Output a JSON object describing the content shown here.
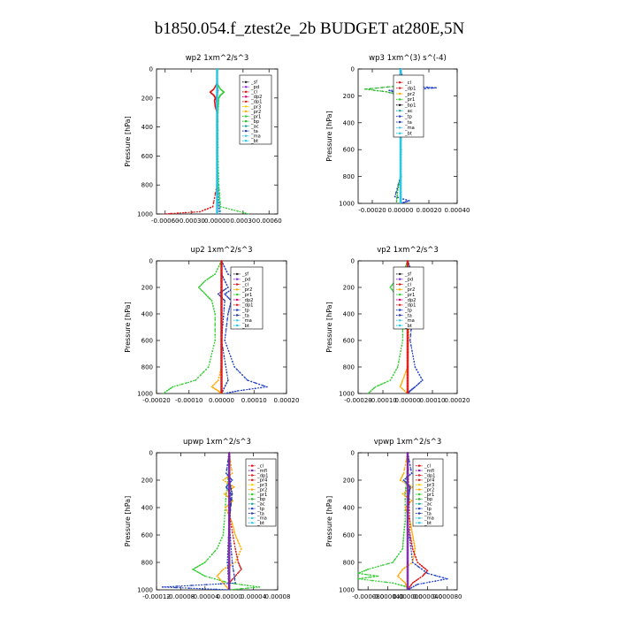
{
  "figure_title": "b1850.054.f_ztest2e_2b  BUDGET at280E,5N",
  "colors": {
    "sf": "#222222",
    "pd": "#8a2be2",
    "cl": "#dd1111",
    "dp2": "#e6007e",
    "dp1": "#e22222",
    "pr3": "#ffcc00",
    "pr2": "#ffaa00",
    "pr1": "#2ecc2e",
    "bp": "#2ab52a",
    "ac": "#1ca39a",
    "tp": "#2040c8",
    "ta": "#1e3aa0",
    "ma": "#3fc4e8",
    "bt": "#20c8e8",
    "mfl": "#7a1fa2",
    "pr4": "#cc2222"
  },
  "chart_data": [
    {
      "type": "line",
      "title": "wp2  1xm^2/s^3",
      "ylabel": "Pressure [hPa]",
      "xlim": [
        -0.0007,
        0.0007
      ],
      "ylim": [
        1000,
        0
      ],
      "xticks": [
        -0.0006,
        -0.0003,
        0,
        0.0003,
        0.0006
      ],
      "xtick_labels": [
        "-0.00060",
        "-0.00030",
        "0.00000",
        "0.00030",
        "0.00060"
      ],
      "yticks": [
        0,
        200,
        400,
        600,
        800,
        1000
      ],
      "yticklabels": [
        "0",
        "200",
        "400",
        "600",
        "800",
        "1000"
      ],
      "legend": [
        "_sf",
        "_pd",
        "_cl",
        "_dp2",
        "_dp1",
        "_pr3",
        "_pr2",
        "_pr1",
        "_bp",
        "_ac",
        "_ta",
        "_ma",
        "_bt"
      ],
      "series": [
        {
          "name": "sf",
          "color": "sf",
          "p": [
            0,
            1000
          ],
          "v": [
            0,
            0
          ]
        },
        {
          "name": "pd",
          "color": "pd",
          "p": [
            100,
            150,
            200,
            250,
            800,
            900,
            1000
          ],
          "v": [
            0,
            1e-05,
            -1e-05,
            0,
            0,
            1e-05,
            3e-05
          ]
        },
        {
          "name": "cl",
          "color": "cl",
          "p": [
            100,
            140,
            160,
            180,
            200,
            220,
            260,
            300,
            500,
            800,
            950,
            985,
            1000
          ],
          "v": [
            0,
            -4e-05,
            -8e-05,
            -4e-05,
            -2e-05,
            -3e-05,
            -2e-05,
            0,
            0,
            0,
            -5e-05,
            -0.0002,
            -0.00062
          ]
        },
        {
          "name": "pr1",
          "color": "pr1",
          "p": [
            100,
            140,
            160,
            180,
            200,
            300,
            600,
            800,
            950,
            1000
          ],
          "v": [
            0,
            4e-05,
            8e-05,
            4e-05,
            2e-05,
            1e-05,
            1e-05,
            2e-05,
            4e-05,
            0.00037
          ]
        },
        {
          "name": "ac",
          "color": "ac",
          "p": [
            0,
            600,
            800,
            900,
            1000
          ],
          "v": [
            0,
            0,
            1e-05,
            2e-05,
            4e-05
          ]
        },
        {
          "name": "bt",
          "color": "bt",
          "p": [
            0,
            1000
          ],
          "v": [
            5e-06,
            5e-06
          ]
        }
      ]
    },
    {
      "type": "line",
      "title": "wp3  1xm^(3) s^(-4)",
      "ylabel": "Pressure [hPa]",
      "xlim": [
        -0.0003,
        0.0004
      ],
      "ylim": [
        1000,
        0
      ],
      "xticks": [
        -0.0002,
        0,
        0.0002,
        0.0004
      ],
      "xtick_labels": [
        "-0.00020",
        "0.00000",
        "0.00020",
        "0.00040"
      ],
      "yticks": [
        0,
        200,
        400,
        600,
        800,
        1000
      ],
      "yticklabels": [
        "0",
        "200",
        "400",
        "600",
        "800",
        "1000"
      ],
      "legend": [
        "_cl",
        "_dp1",
        "_pr2",
        "_pr1",
        "_bp1",
        "_ac",
        "_tp",
        "_ta",
        "_ma",
        "_bt"
      ],
      "series": [
        {
          "name": "cl",
          "color": "cl",
          "p": [
            0,
            100,
            140,
            160,
            200,
            300,
            400,
            600,
            800,
            1000
          ],
          "v": [
            0,
            -1e-05,
            -4e-05,
            2e-05,
            -1e-05,
            1e-05,
            0,
            0,
            0,
            0
          ]
        },
        {
          "name": "tp",
          "color": "tp",
          "p": [
            0,
            100,
            130,
            140,
            150,
            160,
            200,
            260,
            300,
            400,
            600,
            800,
            950,
            980,
            1000
          ],
          "v": [
            0,
            2e-05,
            0.0001,
            0.00025,
            0.00012,
            -8e-05,
            2e-05,
            -3e-05,
            1e-05,
            0,
            0,
            0,
            -4e-05,
            6e-05,
            0
          ]
        },
        {
          "name": "bp",
          "color": "bp",
          "p": [
            100,
            130,
            150,
            170,
            200,
            250,
            300,
            500,
            800,
            900,
            1000
          ],
          "v": [
            0,
            -5e-05,
            -0.00025,
            -0.0001,
            2e-05,
            -2e-05,
            1e-05,
            0,
            0,
            -2e-05,
            -3e-05
          ]
        },
        {
          "name": "pr2",
          "color": "pr2",
          "p": [
            100,
            150,
            180,
            220,
            300,
            400,
            600,
            800,
            1000
          ],
          "v": [
            0,
            4e-05,
            -4e-05,
            3e-05,
            -2e-05,
            1e-05,
            0,
            0,
            0
          ]
        },
        {
          "name": "ma",
          "color": "ma",
          "p": [
            100,
            140,
            160,
            200,
            300,
            1000
          ],
          "v": [
            0,
            8e-05,
            -5e-05,
            2e-05,
            0,
            0
          ]
        },
        {
          "name": "bt",
          "color": "bt",
          "p": [
            0,
            1000
          ],
          "v": [
            5e-06,
            5e-06
          ]
        }
      ]
    },
    {
      "type": "line",
      "title": "up2  1xm^2/s^3",
      "ylabel": "Pressure [hPa]",
      "xlim": [
        -0.0002,
        0.0002
      ],
      "ylim": [
        1000,
        0
      ],
      "xticks": [
        -0.0002,
        -0.0001,
        0,
        0.0001,
        0.0002
      ],
      "xtick_labels": [
        "-0.00020",
        "-0.00010",
        "0.00000",
        "0.00010",
        "0.00020"
      ],
      "yticks": [
        0,
        200,
        400,
        600,
        800,
        1000
      ],
      "yticklabels": [
        "0",
        "200",
        "400",
        "600",
        "800",
        "1000"
      ],
      "legend": [
        "_sf",
        "_pd",
        "_cl",
        "_pr2",
        "_pr1",
        "_dp2",
        "_dp1",
        "_tp",
        "_ta",
        "_ma",
        "_bt"
      ],
      "series": [
        {
          "name": "pr1",
          "color": "pr1",
          "p": [
            0,
            100,
            150,
            200,
            250,
            300,
            400,
            600,
            800,
            900,
            950,
            1000
          ],
          "v": [
            0,
            -2e-05,
            -5e-05,
            -7e-05,
            -5e-05,
            -3e-05,
            -2e-05,
            -2e-05,
            -4e-05,
            -8e-05,
            -0.00015,
            -0.00018
          ]
        },
        {
          "name": "tp",
          "color": "tp",
          "p": [
            0,
            100,
            150,
            200,
            250,
            300,
            400,
            600,
            800,
            900,
            950,
            980,
            1000
          ],
          "v": [
            0,
            2e-05,
            6e-05,
            4e-05,
            1e-05,
            3e-05,
            2e-05,
            1e-05,
            4e-05,
            8e-05,
            0.00014,
            5e-05,
            1e-05
          ]
        },
        {
          "name": "pr2",
          "color": "pr2",
          "p": [
            0,
            800,
            900,
            950,
            980,
            1000
          ],
          "v": [
            0,
            0,
            -1e-05,
            -3e-05,
            -1e-05,
            0
          ]
        },
        {
          "name": "ta",
          "color": "ta",
          "p": [
            100,
            200,
            250,
            300,
            600,
            900,
            1000
          ],
          "v": [
            0,
            2e-05,
            -1e-05,
            1e-05,
            0,
            2e-05,
            0
          ]
        },
        {
          "name": "cl",
          "color": "cl",
          "p": [
            0,
            1000
          ],
          "v": [
            0,
            0
          ]
        }
      ]
    },
    {
      "type": "line",
      "title": "vp2  1xm^2/s^3",
      "ylabel": "Pressure [hPa]",
      "xlim": [
        -0.0002,
        0.0002
      ],
      "ylim": [
        1000,
        0
      ],
      "xticks": [
        -0.0002,
        -0.0001,
        0,
        0.0001,
        0.0002
      ],
      "xtick_labels": [
        "-0.00020",
        "-0.00010",
        "0.00000",
        "0.00010",
        "0.00020"
      ],
      "yticks": [
        0,
        200,
        400,
        600,
        800,
        1000
      ],
      "yticklabels": [
        "0",
        "200",
        "400",
        "600",
        "800",
        "1000"
      ],
      "legend": [
        "_sf",
        "_pd",
        "_cl",
        "_pr2",
        "_pr1",
        "_dp2",
        "_dp1",
        "_tp",
        "_ta",
        "_ma",
        "_bt"
      ],
      "series": [
        {
          "name": "pr1",
          "color": "pr1",
          "p": [
            0,
            100,
            150,
            200,
            250,
            300,
            400,
            600,
            800,
            900,
            950,
            1000
          ],
          "v": [
            0,
            -2e-05,
            -5e-05,
            -7e-05,
            -5e-05,
            -3e-05,
            -2e-05,
            -2e-05,
            -4e-05,
            -7e-05,
            -0.00013,
            -0.00016
          ]
        },
        {
          "name": "tp",
          "color": "tp",
          "p": [
            0,
            100,
            150,
            200,
            250,
            300,
            400,
            600,
            800,
            900,
            950,
            980,
            1000
          ],
          "v": [
            0,
            2e-05,
            5e-05,
            2e-05,
            3e-05,
            1e-05,
            2e-05,
            1e-05,
            3e-05,
            6e-05,
            3e-05,
            1e-05,
            0
          ]
        },
        {
          "name": "pd",
          "color": "pd",
          "p": [
            150,
            200,
            250,
            300
          ],
          "v": [
            0,
            -3e-05,
            0,
            0
          ]
        },
        {
          "name": "pr2",
          "color": "pr2",
          "p": [
            0,
            150,
            200,
            250,
            800,
            900,
            950,
            1000
          ],
          "v": [
            0,
            1e-05,
            3e-05,
            1e-05,
            0,
            -2e-05,
            -3e-05,
            0
          ]
        },
        {
          "name": "cl",
          "color": "cl",
          "p": [
            0,
            1000
          ],
          "v": [
            0,
            0
          ]
        }
      ]
    },
    {
      "type": "line",
      "title": "upwp  1xm^2/s^3",
      "ylabel": "Pressure [hPa]",
      "xlim": [
        -0.00012,
        8e-05
      ],
      "ylim": [
        1000,
        0
      ],
      "xticks": [
        -0.00012,
        -8e-05,
        -4e-05,
        0,
        4e-05,
        8e-05
      ],
      "xtick_labels": [
        "-0.00012",
        "-0.00008",
        "-0.00004",
        "0.00000",
        "0.00004",
        "0.00008"
      ],
      "yticks": [
        0,
        200,
        400,
        600,
        800,
        1000
      ],
      "yticklabels": [
        "0",
        "200",
        "400",
        "600",
        "800",
        "1000"
      ],
      "legend": [
        "_cl",
        "_mfl",
        "_dp1",
        "_pr4",
        "_pr3",
        "_pr2",
        "_pr1",
        "_bp",
        "_ac",
        "_tp",
        "_ta",
        "_ma",
        "_bt"
      ],
      "series": [
        {
          "name": "pr1",
          "color": "pr1",
          "p": [
            0,
            100,
            300,
            500,
            600,
            700,
            800,
            850,
            900,
            950,
            980,
            1000
          ],
          "v": [
            0,
            0,
            -5e-06,
            -8e-06,
            -1e-05,
            -2e-05,
            -4e-05,
            -6e-05,
            -4e-05,
            0,
            5e-05,
            0
          ]
        },
        {
          "name": "pr2",
          "color": "pr2",
          "p": [
            0,
            150,
            200,
            250,
            300,
            350,
            400,
            500,
            600,
            700,
            800,
            850,
            900,
            950,
            1000
          ],
          "v": [
            0,
            5e-06,
            -1e-05,
            8e-06,
            -8e-06,
            6e-06,
            -6e-06,
            4e-06,
            1e-05,
            2e-05,
            1e-05,
            -1e-05,
            -2e-05,
            -1e-05,
            0
          ]
        },
        {
          "name": "pr4",
          "color": "pr4",
          "p": [
            0,
            500,
            700,
            800,
            850,
            900,
            950,
            1000
          ],
          "v": [
            0,
            2e-06,
            1e-05,
            1.5e-05,
            2e-05,
            1e-05,
            0,
            0
          ]
        },
        {
          "name": "tp",
          "color": "tp",
          "p": [
            0,
            150,
            200,
            250,
            300,
            500,
            800,
            950,
            980,
            1000
          ],
          "v": [
            0,
            -5e-06,
            5e-06,
            -5e-06,
            3e-06,
            0,
            5e-06,
            1e-05,
            -0.00011,
            0
          ]
        },
        {
          "name": "ta",
          "color": "ta",
          "p": [
            200,
            300,
            500,
            800,
            1000
          ],
          "v": [
            0,
            5e-06,
            0,
            -3e-06,
            0
          ]
        },
        {
          "name": "mfl",
          "color": "mfl",
          "p": [
            0,
            1000
          ],
          "v": [
            0,
            0
          ]
        }
      ]
    },
    {
      "type": "line",
      "title": "vpwp  1xm^2/s^3",
      "ylabel": "Pressure [hPa]",
      "xlim": [
        -0.0001,
        0.0001
      ],
      "ylim": [
        1000,
        0
      ],
      "xticks": [
        -8e-05,
        -4e-05,
        0,
        4e-05,
        8e-05
      ],
      "xtick_labels": [
        "-0.000080",
        "-0.000040",
        "0.000000",
        "0.000040",
        "0.000080"
      ],
      "yticks": [
        0,
        200,
        400,
        600,
        800,
        1000
      ],
      "yticklabels": [
        "0",
        "200",
        "400",
        "600",
        "800",
        "1000"
      ],
      "legend": [
        "_cl",
        "_mfl",
        "_dp1",
        "_pr4",
        "_pr3",
        "_pr2",
        "_pr1",
        "_bp",
        "_ac",
        "_tp",
        "_ta",
        "_ma",
        "_bt"
      ],
      "series": [
        {
          "name": "pr1",
          "color": "pr1",
          "p": [
            0,
            100,
            300,
            500,
            600,
            700,
            800,
            850,
            880,
            900,
            920,
            950,
            980,
            1000
          ],
          "v": [
            0,
            0,
            -5e-06,
            -5e-06,
            -8e-06,
            -1e-05,
            -3e-05,
            -8e-05,
            -0.0001,
            -6e-05,
            -0.0001,
            -3e-05,
            0,
            0
          ]
        },
        {
          "name": "pr2",
          "color": "pr2",
          "p": [
            0,
            150,
            200,
            250,
            300,
            350,
            400,
            500,
            600,
            700,
            800,
            850,
            900,
            950,
            1000
          ],
          "v": [
            0,
            -8e-06,
            -1.5e-05,
            1e-05,
            -1e-05,
            8e-06,
            -5e-06,
            5e-06,
            1e-05,
            1.5e-05,
            1e-05,
            -1e-05,
            -2e-05,
            -5e-06,
            0
          ]
        },
        {
          "name": "cl",
          "color": "cl",
          "p": [
            0,
            600,
            700,
            800,
            860,
            900,
            950,
            1000
          ],
          "v": [
            0,
            5e-06,
            1e-05,
            2e-05,
            4e-05,
            3e-05,
            1e-05,
            0
          ]
        },
        {
          "name": "tp",
          "color": "tp",
          "p": [
            0,
            150,
            200,
            250,
            300,
            500,
            800,
            880,
            920,
            960,
            1000
          ],
          "v": [
            0,
            8e-06,
            -8e-06,
            5e-06,
            3e-06,
            0,
            1e-05,
            4e-05,
            8e-05,
            2e-05,
            0
          ]
        },
        {
          "name": "mfl",
          "color": "mfl",
          "p": [
            0,
            1000
          ],
          "v": [
            0,
            0
          ]
        }
      ]
    }
  ]
}
